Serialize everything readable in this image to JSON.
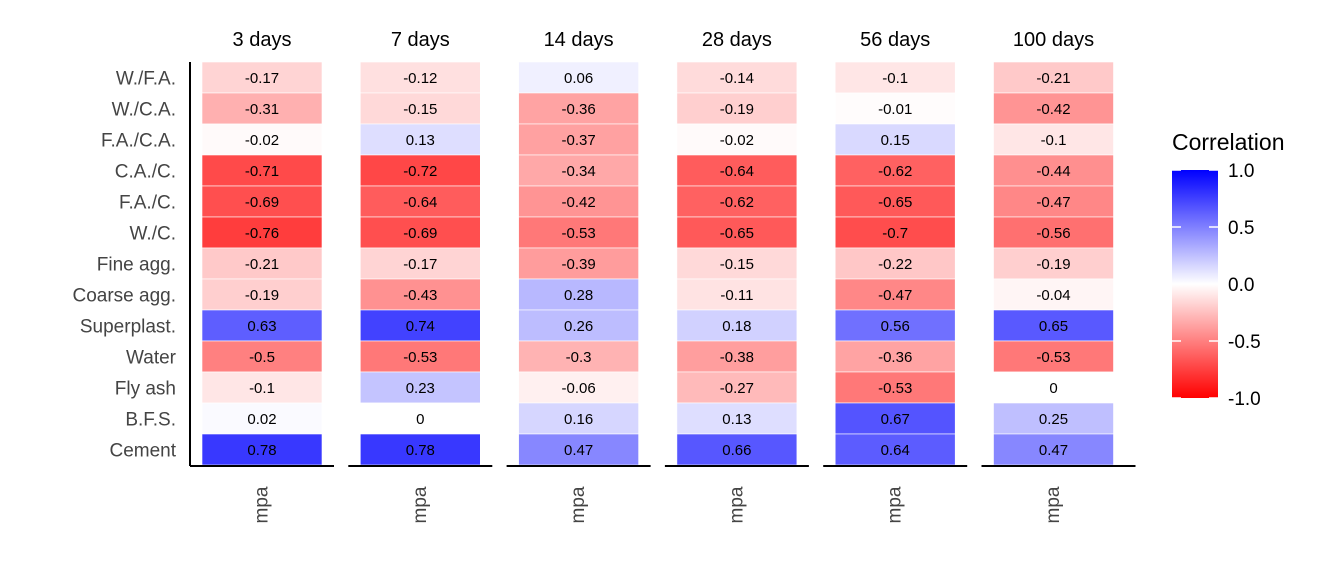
{
  "chart_data": {
    "type": "heatmap",
    "panels": [
      "3 days",
      "7 days",
      "14 days",
      "28 days",
      "56 days",
      "100 days"
    ],
    "x_tick": "mpa",
    "rows": [
      "W./F.A.",
      "W./C.A.",
      "F.A./C.A.",
      "C.A./C.",
      "F.A./C.",
      "W./C.",
      "Fine agg.",
      "Coarse agg.",
      "Superplast.",
      "Water",
      "Fly ash",
      "B.F.S.",
      "Cement"
    ],
    "values": [
      [
        -0.17,
        -0.31,
        -0.02,
        -0.71,
        -0.69,
        -0.76,
        -0.21,
        -0.19,
        0.63,
        -0.5,
        -0.1,
        0.02,
        0.78
      ],
      [
        -0.12,
        -0.15,
        0.13,
        -0.72,
        -0.64,
        -0.69,
        -0.17,
        -0.43,
        0.74,
        -0.53,
        0.23,
        0,
        0.78
      ],
      [
        0.06,
        -0.36,
        -0.37,
        -0.34,
        -0.42,
        -0.53,
        -0.39,
        0.28,
        0.26,
        -0.3,
        -0.06,
        0.16,
        0.47
      ],
      [
        -0.14,
        -0.19,
        -0.02,
        -0.64,
        -0.62,
        -0.65,
        -0.15,
        -0.11,
        0.18,
        -0.38,
        -0.27,
        0.13,
        0.66
      ],
      [
        -0.1,
        -0.01,
        0.15,
        -0.62,
        -0.65,
        -0.7,
        -0.22,
        -0.47,
        0.56,
        -0.36,
        -0.53,
        0.67,
        0.64
      ],
      [
        -0.21,
        -0.42,
        -0.1,
        -0.44,
        -0.47,
        -0.56,
        -0.19,
        -0.04,
        0.65,
        -0.53,
        0,
        0.25,
        0.47
      ]
    ],
    "legend": {
      "title": "Correlation",
      "ticks": [
        "1.0",
        "0.5",
        "0.0",
        "-0.5",
        "-1.0"
      ],
      "tick_values": [
        1.0,
        0.5,
        0.0,
        -0.5,
        -1.0
      ],
      "range": [
        -1,
        1
      ]
    },
    "colors": {
      "negative": "#ff0000",
      "zero": "#ffffff",
      "positive": "#0000ff"
    }
  }
}
